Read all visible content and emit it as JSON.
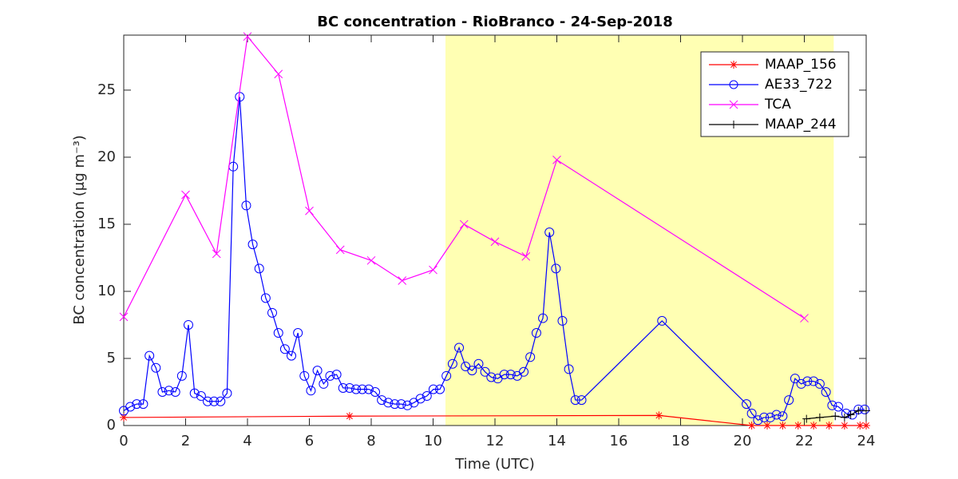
{
  "chart_data": {
    "type": "line",
    "title": "BC concentration  - RioBranco - 24-Sep-2018",
    "xlabel": "Time (UTC)",
    "ylabel": "BC concentration (μg m⁻³)",
    "xlim": [
      0,
      24
    ],
    "xticks": [
      0,
      2,
      4,
      6,
      8,
      10,
      12,
      14,
      16,
      18,
      20,
      22,
      24
    ],
    "ylim": [
      0,
      29.1
    ],
    "yticks": [
      0,
      5,
      10,
      15,
      20,
      25
    ],
    "shaded_region": {
      "xlim": [
        10.4,
        22.95
      ],
      "color": "#ffffb3"
    },
    "legend": "upper right",
    "series": [
      {
        "name": "MAAP_156",
        "color": "#ff0000",
        "marker": "asterisk",
        "x": [
          0,
          7.3,
          17.3,
          20.3,
          20.8,
          21.3,
          21.8,
          22.3,
          22.8,
          23.3,
          23.8,
          24
        ],
        "values": [
          0.6,
          0.7,
          0.75,
          0,
          0,
          0,
          0,
          0,
          0,
          0,
          0,
          0
        ]
      },
      {
        "name": "AE33_722",
        "color": "#0000ff",
        "marker": "circle",
        "x": [
          0,
          0.21,
          0.42,
          0.63,
          0.83,
          1.04,
          1.25,
          1.46,
          1.67,
          1.88,
          2.09,
          2.29,
          2.5,
          2.71,
          2.92,
          3.13,
          3.34,
          3.54,
          3.75,
          3.96,
          4.17,
          4.38,
          4.59,
          4.8,
          5.0,
          5.21,
          5.42,
          5.63,
          5.84,
          6.05,
          6.26,
          6.46,
          6.67,
          6.88,
          7.09,
          7.3,
          7.51,
          7.71,
          7.92,
          8.13,
          8.34,
          8.55,
          8.76,
          8.97,
          9.17,
          9.38,
          9.59,
          9.8,
          10.01,
          10.22,
          10.43,
          10.63,
          10.84,
          11.05,
          11.26,
          11.47,
          11.68,
          11.88,
          12.09,
          12.3,
          12.51,
          12.72,
          12.93,
          13.14,
          13.34,
          13.55,
          13.76,
          13.97,
          14.18,
          14.39,
          14.6,
          14.8,
          17.4,
          20.13,
          20.3,
          20.5,
          20.7,
          20.9,
          21.1,
          21.3,
          21.5,
          21.7,
          21.9,
          22.1,
          22.3,
          22.5,
          22.7,
          22.9,
          23.1,
          23.35,
          23.55,
          23.75,
          23.95
        ],
        "values": [
          1.1,
          1.4,
          1.6,
          1.6,
          5.2,
          4.3,
          2.5,
          2.6,
          2.5,
          3.7,
          7.5,
          2.4,
          2.2,
          1.8,
          1.8,
          1.8,
          2.4,
          19.3,
          24.5,
          16.4,
          13.5,
          11.7,
          9.5,
          8.4,
          6.9,
          5.7,
          5.2,
          6.9,
          3.7,
          2.6,
          4.1,
          3.1,
          3.7,
          3.8,
          2.8,
          2.8,
          2.7,
          2.7,
          2.7,
          2.5,
          1.9,
          1.7,
          1.6,
          1.6,
          1.5,
          1.7,
          2.0,
          2.2,
          2.7,
          2.7,
          3.7,
          4.6,
          5.8,
          4.4,
          4.1,
          4.6,
          4.0,
          3.6,
          3.5,
          3.8,
          3.8,
          3.7,
          4.0,
          5.1,
          6.9,
          8.0,
          14.4,
          11.7,
          7.8,
          4.2,
          1.9,
          1.9,
          7.8,
          1.6,
          0.9,
          0.4,
          0.6,
          0.6,
          0.8,
          0.7,
          1.9,
          3.5,
          3.1,
          3.3,
          3.3,
          3.1,
          2.5,
          1.5,
          1.4,
          0.9,
          0.8,
          1.2,
          1.2
        ]
      },
      {
        "name": "TCA",
        "color": "#ff00ff",
        "marker": "x",
        "x": [
          0,
          2,
          3,
          4,
          5,
          6,
          7,
          8,
          9,
          10,
          11,
          12,
          13,
          14,
          22
        ],
        "values": [
          8.1,
          17.2,
          12.8,
          29,
          26.2,
          16,
          13.1,
          12.3,
          10.8,
          11.6,
          15,
          13.7,
          12.6,
          19.8,
          8
        ]
      },
      {
        "name": "MAAP_244",
        "color": "#000000",
        "marker": "plus",
        "x": [
          22.07,
          22.5,
          23,
          23.3,
          23.5,
          23.75,
          24
        ],
        "values": [
          0.5,
          0.6,
          0.7,
          0.6,
          0.8,
          1.1,
          1.1
        ]
      }
    ]
  }
}
